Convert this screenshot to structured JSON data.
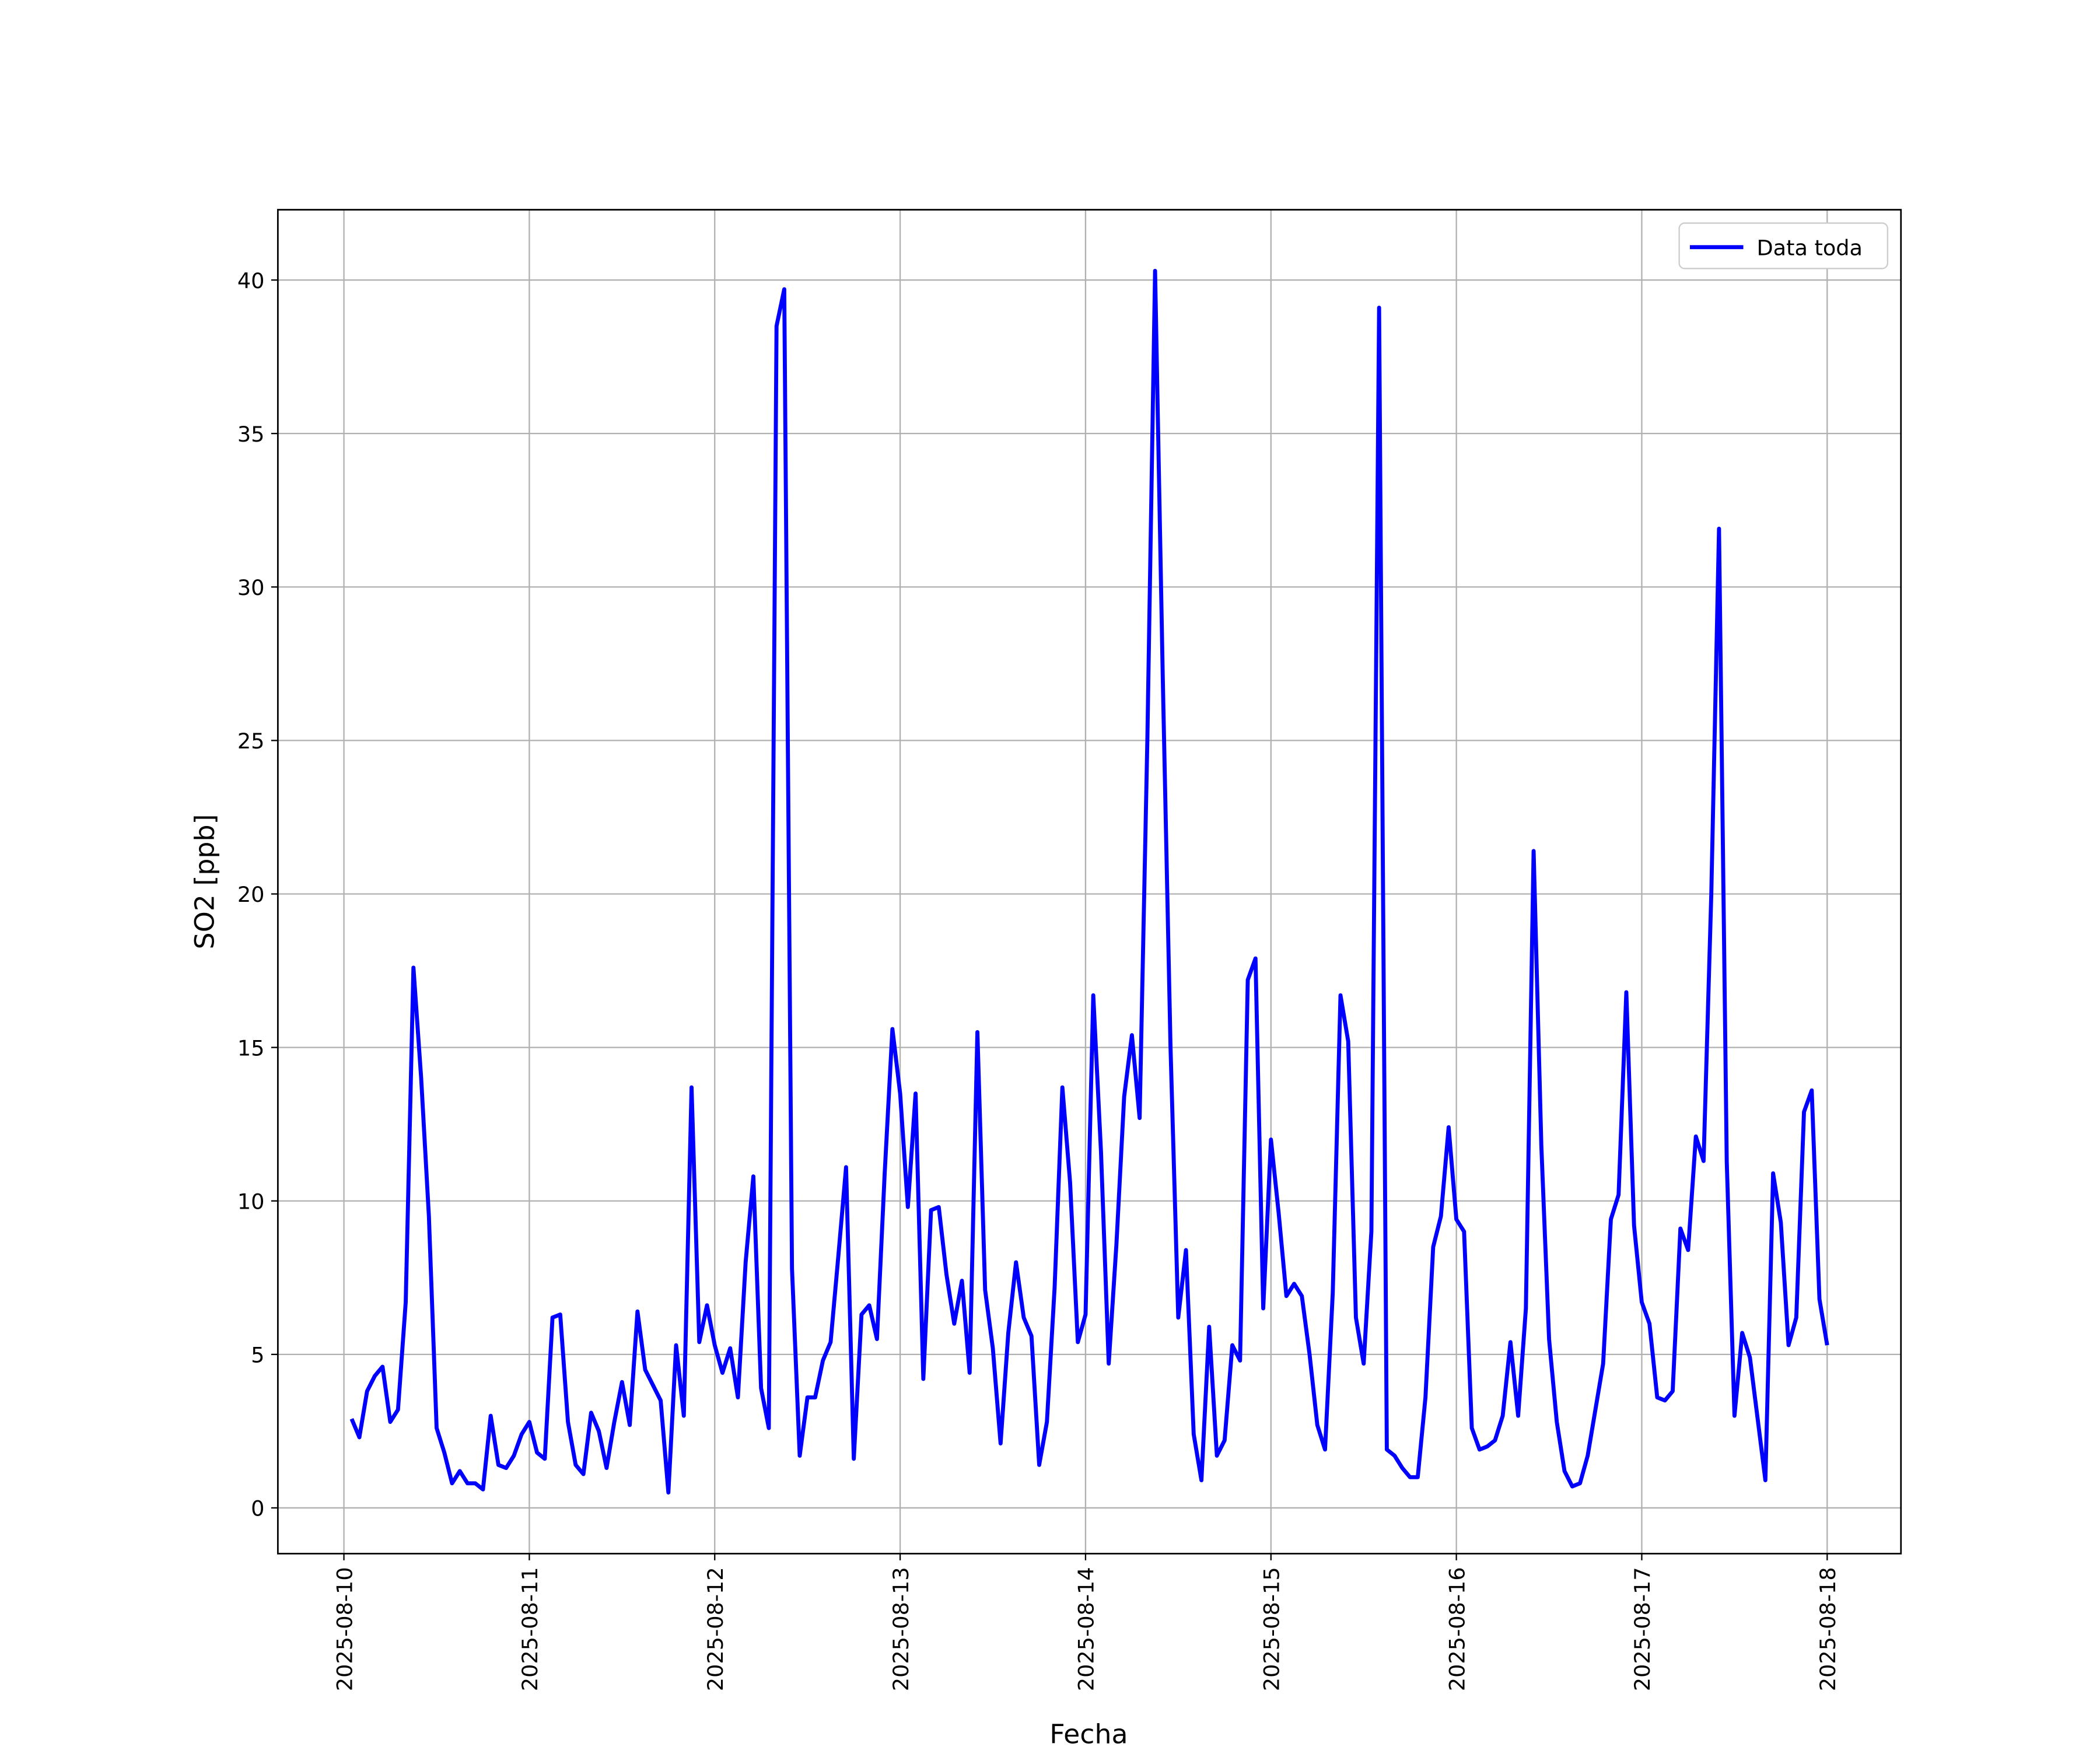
{
  "chart_data": {
    "type": "line",
    "x_label": "Fecha",
    "y_label": "SO2 [ppb]",
    "x": [
      "2025-08-10 01:00",
      "2025-08-10 02:00",
      "2025-08-10 03:00",
      "2025-08-10 04:00",
      "2025-08-10 05:00",
      "2025-08-10 06:00",
      "2025-08-10 07:00",
      "2025-08-10 08:00",
      "2025-08-10 09:00",
      "2025-08-10 10:00",
      "2025-08-10 11:00",
      "2025-08-10 12:00",
      "2025-08-10 13:00",
      "2025-08-10 14:00",
      "2025-08-10 15:00",
      "2025-08-10 16:00",
      "2025-08-10 17:00",
      "2025-08-10 18:00",
      "2025-08-10 19:00",
      "2025-08-10 20:00",
      "2025-08-10 21:00",
      "2025-08-10 22:00",
      "2025-08-10 23:00",
      "2025-08-11 00:00",
      "2025-08-11 01:00",
      "2025-08-11 02:00",
      "2025-08-11 03:00",
      "2025-08-11 04:00",
      "2025-08-11 05:00",
      "2025-08-11 06:00",
      "2025-08-11 07:00",
      "2025-08-11 08:00",
      "2025-08-11 09:00",
      "2025-08-11 10:00",
      "2025-08-11 11:00",
      "2025-08-11 12:00",
      "2025-08-11 13:00",
      "2025-08-11 14:00",
      "2025-08-11 15:00",
      "2025-08-11 16:00",
      "2025-08-11 17:00",
      "2025-08-11 18:00",
      "2025-08-11 19:00",
      "2025-08-11 20:00",
      "2025-08-11 21:00",
      "2025-08-11 22:00",
      "2025-08-11 23:00",
      "2025-08-12 00:00",
      "2025-08-12 01:00",
      "2025-08-12 02:00",
      "2025-08-12 03:00",
      "2025-08-12 04:00",
      "2025-08-12 05:00",
      "2025-08-12 06:00",
      "2025-08-12 07:00",
      "2025-08-12 08:00",
      "2025-08-12 09:00",
      "2025-08-12 10:00",
      "2025-08-12 11:00",
      "2025-08-12 12:00",
      "2025-08-12 13:00",
      "2025-08-12 14:00",
      "2025-08-12 15:00",
      "2025-08-12 16:00",
      "2025-08-12 17:00",
      "2025-08-12 18:00",
      "2025-08-12 19:00",
      "2025-08-12 20:00",
      "2025-08-12 21:00",
      "2025-08-12 22:00",
      "2025-08-12 23:00",
      "2025-08-13 00:00",
      "2025-08-13 01:00",
      "2025-08-13 02:00",
      "2025-08-13 03:00",
      "2025-08-13 04:00",
      "2025-08-13 05:00",
      "2025-08-13 06:00",
      "2025-08-13 07:00",
      "2025-08-13 08:00",
      "2025-08-13 09:00",
      "2025-08-13 10:00",
      "2025-08-13 11:00",
      "2025-08-13 12:00",
      "2025-08-13 13:00",
      "2025-08-13 14:00",
      "2025-08-13 15:00",
      "2025-08-13 16:00",
      "2025-08-13 17:00",
      "2025-08-13 18:00",
      "2025-08-13 19:00",
      "2025-08-13 20:00",
      "2025-08-13 21:00",
      "2025-08-13 22:00",
      "2025-08-13 23:00",
      "2025-08-14 00:00",
      "2025-08-14 01:00",
      "2025-08-14 02:00",
      "2025-08-14 03:00",
      "2025-08-14 04:00",
      "2025-08-14 05:00",
      "2025-08-14 06:00",
      "2025-08-14 07:00",
      "2025-08-14 08:00",
      "2025-08-14 09:00",
      "2025-08-14 10:00",
      "2025-08-14 11:00",
      "2025-08-14 12:00",
      "2025-08-14 13:00",
      "2025-08-14 14:00",
      "2025-08-14 15:00",
      "2025-08-14 16:00",
      "2025-08-14 17:00",
      "2025-08-14 18:00",
      "2025-08-14 19:00",
      "2025-08-14 20:00",
      "2025-08-14 21:00",
      "2025-08-14 22:00",
      "2025-08-14 23:00",
      "2025-08-15 00:00",
      "2025-08-15 01:00",
      "2025-08-15 02:00",
      "2025-08-15 03:00",
      "2025-08-15 04:00",
      "2025-08-15 05:00",
      "2025-08-15 06:00",
      "2025-08-15 07:00",
      "2025-08-15 08:00",
      "2025-08-15 09:00",
      "2025-08-15 10:00",
      "2025-08-15 11:00",
      "2025-08-15 12:00",
      "2025-08-15 13:00",
      "2025-08-15 14:00",
      "2025-08-15 15:00",
      "2025-08-15 16:00",
      "2025-08-15 17:00",
      "2025-08-15 18:00",
      "2025-08-15 19:00",
      "2025-08-15 20:00",
      "2025-08-15 21:00",
      "2025-08-15 22:00",
      "2025-08-15 23:00",
      "2025-08-16 00:00",
      "2025-08-16 01:00",
      "2025-08-16 02:00",
      "2025-08-16 03:00",
      "2025-08-16 04:00",
      "2025-08-16 05:00",
      "2025-08-16 06:00",
      "2025-08-16 07:00",
      "2025-08-16 08:00",
      "2025-08-16 09:00",
      "2025-08-16 10:00",
      "2025-08-16 11:00",
      "2025-08-16 12:00",
      "2025-08-16 13:00",
      "2025-08-16 14:00",
      "2025-08-16 15:00",
      "2025-08-16 16:00",
      "2025-08-16 17:00",
      "2025-08-16 18:00",
      "2025-08-16 19:00",
      "2025-08-16 20:00",
      "2025-08-16 21:00",
      "2025-08-16 22:00",
      "2025-08-16 23:00",
      "2025-08-17 00:00",
      "2025-08-17 01:00",
      "2025-08-17 02:00",
      "2025-08-17 03:00",
      "2025-08-17 04:00",
      "2025-08-17 05:00",
      "2025-08-17 06:00",
      "2025-08-17 07:00",
      "2025-08-17 08:00",
      "2025-08-17 09:00",
      "2025-08-17 10:00",
      "2025-08-17 11:00",
      "2025-08-17 12:00",
      "2025-08-17 13:00",
      "2025-08-17 14:00",
      "2025-08-17 15:00",
      "2025-08-17 16:00",
      "2025-08-17 17:00",
      "2025-08-17 18:00",
      "2025-08-17 19:00",
      "2025-08-17 20:00",
      "2025-08-17 21:00",
      "2025-08-17 22:00",
      "2025-08-17 23:00",
      "2025-08-18 00:00"
    ],
    "series": [
      {
        "name": "Data toda",
        "color": "#0000ff",
        "values": [
          2.9,
          2.3,
          3.8,
          4.3,
          4.6,
          2.8,
          3.2,
          6.7,
          17.6,
          14.0,
          9.5,
          2.6,
          1.8,
          0.8,
          1.2,
          0.8,
          0.8,
          0.6,
          3.0,
          1.4,
          1.3,
          1.7,
          2.4,
          2.8,
          1.8,
          1.6,
          6.2,
          6.3,
          2.8,
          1.4,
          1.1,
          3.1,
          2.5,
          1.3,
          2.8,
          4.1,
          2.7,
          6.4,
          4.5,
          4.0,
          3.5,
          0.5,
          5.3,
          3.0,
          13.7,
          5.4,
          6.6,
          5.3,
          4.4,
          5.2,
          3.6,
          8.0,
          10.8,
          3.9,
          2.6,
          38.5,
          39.7,
          7.8,
          1.7,
          3.6,
          3.6,
          4.8,
          5.4,
          8.2,
          11.1,
          1.6,
          6.3,
          6.6,
          5.5,
          10.9,
          15.6,
          13.5,
          9.8,
          13.5,
          4.2,
          9.7,
          9.8,
          7.6,
          6.0,
          7.4,
          4.4,
          15.5,
          7.1,
          5.2,
          2.1,
          5.7,
          8.0,
          6.2,
          5.6,
          1.4,
          2.8,
          7.2,
          13.7,
          10.6,
          5.4,
          6.3,
          16.7,
          11.6,
          4.7,
          8.6,
          13.4,
          15.4,
          12.7,
          25.0,
          40.3,
          27.0,
          15.0,
          6.2,
          8.4,
          2.4,
          0.9,
          5.9,
          1.7,
          2.2,
          5.3,
          4.8,
          17.2,
          17.9,
          6.5,
          12.0,
          9.6,
          6.9,
          7.3,
          6.9,
          5.0,
          2.7,
          1.9,
          7.0,
          16.7,
          15.2,
          6.2,
          4.7,
          9.0,
          39.1,
          1.9,
          1.7,
          1.3,
          1.0,
          1.0,
          3.6,
          8.5,
          9.5,
          12.4,
          9.4,
          9.0,
          2.6,
          1.9,
          2.0,
          2.2,
          3.0,
          5.4,
          3.0,
          6.5,
          21.4,
          11.8,
          5.5,
          2.8,
          1.2,
          0.7,
          0.8,
          1.7,
          3.2,
          4.7,
          9.4,
          10.2,
          16.8,
          9.2,
          6.7,
          6.0,
          3.6,
          3.5,
          3.8,
          9.1,
          8.4,
          12.1,
          11.3,
          20.0,
          31.9,
          11.3,
          3.0,
          5.7,
          4.9,
          2.9,
          0.9,
          10.9,
          9.3,
          5.3,
          6.2,
          12.9,
          13.6,
          6.8,
          5.3
        ]
      }
    ],
    "xlim": [
      "2025-08-09 15:27",
      "2025-08-18 09:33"
    ],
    "xticks": [
      "2025-08-10",
      "2025-08-11",
      "2025-08-12",
      "2025-08-13",
      "2025-08-14",
      "2025-08-15",
      "2025-08-16",
      "2025-08-17",
      "2025-08-18"
    ],
    "ylim": [
      -1.49,
      42.29
    ],
    "yticks": [
      0,
      5,
      10,
      15,
      20,
      25,
      30,
      35,
      40
    ],
    "grid": true,
    "legend": "upper right"
  }
}
